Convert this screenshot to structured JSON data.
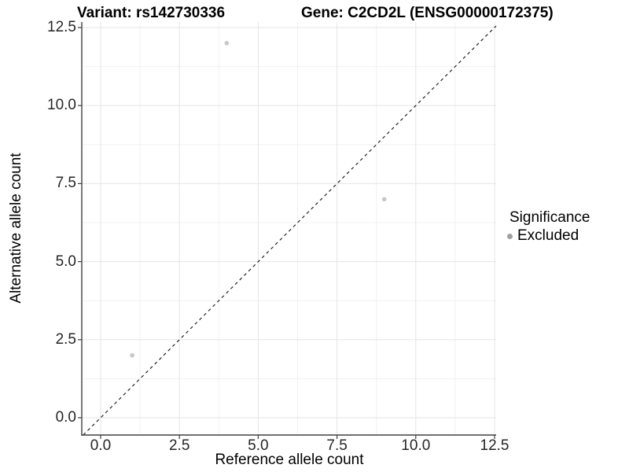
{
  "figure": {
    "title_variant": "Variant: rs142730336",
    "title_gene": "Gene: C2CD2L (ENSG00000172375)"
  },
  "chart_data": {
    "type": "scatter",
    "title": "Variant: rs142730336 — Gene: C2CD2L (ENSG00000172375)",
    "xlabel": "Reference allele count",
    "ylabel": "Alternative allele count",
    "x_ticks": [
      0,
      2.5,
      5,
      7.5,
      10,
      12.5
    ],
    "y_ticks": [
      0,
      2.5,
      5,
      7.5,
      10,
      12.5
    ],
    "x_tick_labels": [
      "0.0",
      "2.5",
      "5.0",
      "7.5",
      "10.0",
      "12.5"
    ],
    "y_tick_labels": [
      "0.0",
      "2.5",
      "5.0",
      "7.5",
      "10.0",
      "12.5"
    ],
    "xlim": [
      -0.6,
      12.55
    ],
    "ylim": [
      -0.55,
      12.68
    ],
    "grid": {
      "major": true,
      "minor": true
    },
    "series": [
      {
        "name": "Excluded",
        "marker": "circle",
        "color": "#c7c7c7",
        "points": [
          {
            "x": 1,
            "y": 2
          },
          {
            "x": 4,
            "y": 12
          },
          {
            "x": 9,
            "y": 7
          }
        ]
      }
    ],
    "reference_line": {
      "kind": "identity y = x",
      "style": "dashed",
      "color": "#111111"
    },
    "legend": {
      "title": "Significance",
      "position": "right",
      "entries": [
        {
          "label": "Excluded",
          "marker_color": "#a0a0a0"
        }
      ]
    }
  }
}
